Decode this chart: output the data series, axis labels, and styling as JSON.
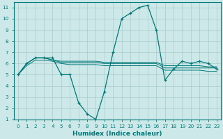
{
  "xlabel": "Humidex (Indice chaleur)",
  "bg_color": "#cce8e8",
  "line_color": "#007878",
  "grid_color": "#aacccc",
  "xlim": [
    -0.5,
    23.5
  ],
  "ylim": [
    1,
    11.5
  ],
  "xticks": [
    0,
    1,
    2,
    3,
    4,
    5,
    6,
    7,
    8,
    9,
    10,
    11,
    12,
    13,
    14,
    15,
    16,
    17,
    18,
    19,
    20,
    21,
    22,
    23
  ],
  "yticks": [
    1,
    2,
    3,
    4,
    5,
    6,
    7,
    8,
    9,
    10,
    11
  ],
  "series0": [
    5.0,
    6.0,
    6.5,
    6.5,
    6.5,
    5.0,
    5.0,
    2.5,
    1.5,
    1.0,
    3.5,
    7.0,
    10.0,
    10.5,
    11.0,
    11.2,
    9.0,
    4.5,
    5.5,
    6.2,
    6.0,
    6.2,
    6.0,
    5.5
  ],
  "series1": [
    5.0,
    6.0,
    6.5,
    6.5,
    6.3,
    6.2,
    6.2,
    6.2,
    6.2,
    6.2,
    6.1,
    6.1,
    6.1,
    6.1,
    6.1,
    6.1,
    6.1,
    5.8,
    5.8,
    5.8,
    5.8,
    5.8,
    5.7,
    5.7
  ],
  "series2": [
    5.0,
    6.0,
    6.5,
    6.5,
    6.3,
    6.1,
    6.1,
    6.1,
    6.1,
    6.1,
    6.0,
    6.0,
    6.0,
    6.0,
    6.0,
    6.0,
    6.0,
    5.6,
    5.6,
    5.6,
    5.6,
    5.6,
    5.6,
    5.6
  ],
  "series3": [
    5.0,
    5.8,
    6.3,
    6.3,
    6.2,
    6.0,
    5.9,
    5.9,
    5.9,
    5.9,
    5.8,
    5.8,
    5.8,
    5.8,
    5.8,
    5.8,
    5.8,
    5.4,
    5.4,
    5.4,
    5.4,
    5.4,
    5.3,
    5.3
  ],
  "xlabel_fontsize": 6.5,
  "tick_fontsize": 5.2
}
